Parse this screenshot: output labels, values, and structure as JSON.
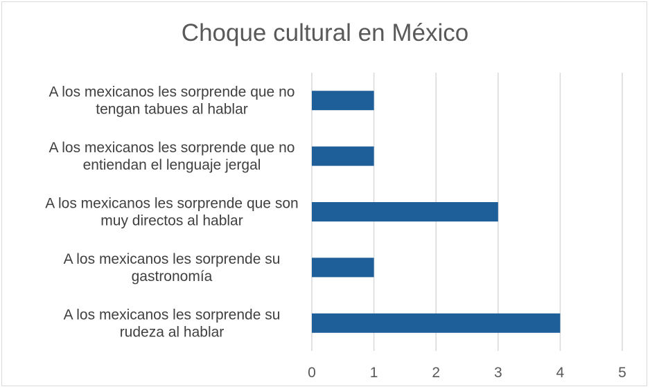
{
  "chart_data": {
    "type": "bar",
    "orientation": "horizontal",
    "title": "Choque cultural en México",
    "xlabel": "",
    "ylabel": "",
    "categories": [
      [
        "A los mexicanos les sorprende que no",
        "tengan tabues al hablar"
      ],
      [
        "A los mexicanos les sorprende que no",
        "entiendan el lenguaje jergal"
      ],
      [
        "A los mexicanos les sorprende que son",
        "muy directos al hablar"
      ],
      [
        "A los mexicanos les sorprende su",
        "gastronomía"
      ],
      [
        "A los mexicanos les sorprende su",
        "rudeza al hablar"
      ]
    ],
    "values": [
      1,
      1,
      3,
      1,
      4
    ],
    "xlim": [
      0,
      5
    ],
    "xticks": [
      "0",
      "1",
      "2",
      "3",
      "4",
      "5"
    ],
    "grid": true,
    "legend": "none",
    "bar_color": "#1f5f99",
    "grid_color": "#d9d9d9"
  }
}
